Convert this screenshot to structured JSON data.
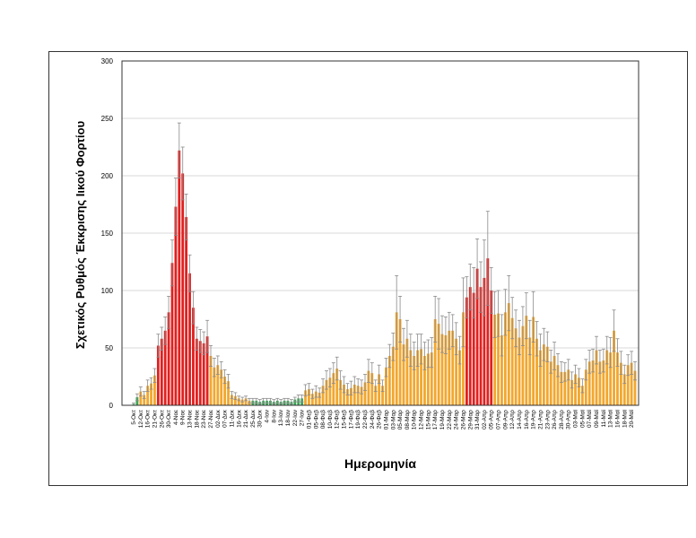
{
  "chart_data": {
    "type": "bar",
    "title": "",
    "xlabel": "Ημερομηνία",
    "ylabel": "Σχετικός Ρυθμός Έκκρισης Ιικού Φορτίου",
    "ylim": [
      0,
      300
    ],
    "yticks": [
      0,
      50,
      100,
      150,
      200,
      250,
      300
    ],
    "grid": true,
    "tick_labels": [
      "5-Οκτ",
      "12-Οκτ",
      "16-Οκτ",
      "21-Οκτ",
      "26-Οκτ",
      "30-Οκτ",
      "4-Νοε",
      "9-Νοε",
      "13-Νοε",
      "18-Νοε",
      "23-Νοε",
      "27-Νοε",
      "02-Δεκ",
      "07-Δεκ",
      "11-Δεκ",
      "16-Δεκ",
      "21-Δεκ",
      "25-Δεκ",
      "30-Δεκ",
      "4-Ιαν",
      "8-Ιαν",
      "13-Ιαν",
      "18-Ιαν",
      "22-Ιαν",
      "27-Ιαν",
      "01-Φεβ",
      "05-Φεβ",
      "08-Φεβ",
      "10-Φεβ",
      "12-Φεβ",
      "15-Φεβ",
      "17-Φεβ",
      "19-Φεβ",
      "22-Φεβ",
      "24-Φεβ",
      "26-Φεβ",
      "01-Μαρ",
      "03-Μαρ",
      "05-Μαρ",
      "08-Μαρ",
      "10-Μαρ",
      "12-Μαρ",
      "15-Μαρ",
      "17-Μαρ",
      "19-Μαρ",
      "22-Μαρ",
      "24-Μαρ",
      "26-Μαρ",
      "29-Μαρ",
      "31-Μαρ",
      "02-Απρ",
      "05-Απρ",
      "07-Απρ",
      "09-Απρ",
      "12-Απρ",
      "14-Απρ",
      "16-Απρ",
      "19-Απρ",
      "21-Απρ",
      "23-Απρ",
      "26-Απρ",
      "28-Απρ",
      "30-Απρ",
      "03-Μαϊ",
      "05-Μαϊ",
      "07-Μαϊ",
      "09-Μαϊ",
      "11-Μαϊ",
      "13-Μαϊ",
      "16-Μαϊ",
      "18-Μαϊ",
      "20-Μαϊ"
    ],
    "values": [
      1,
      7,
      12,
      9,
      17,
      19,
      26,
      52,
      58,
      65,
      81,
      124,
      173,
      222,
      202,
      164,
      115,
      85,
      58,
      56,
      54,
      60,
      43,
      33,
      35,
      31,
      25,
      21,
      9,
      8,
      6,
      5,
      6,
      4,
      4,
      4,
      3,
      4,
      4,
      4,
      3,
      4,
      3,
      4,
      4,
      3,
      5,
      6,
      6,
      13,
      14,
      10,
      12,
      11,
      17,
      22,
      24,
      28,
      32,
      22,
      18,
      14,
      15,
      18,
      17,
      16,
      20,
      30,
      28,
      17,
      27,
      17,
      33,
      43,
      51,
      81,
      75,
      53,
      58,
      48,
      43,
      48,
      49,
      43,
      45,
      46,
      75,
      71,
      62,
      61,
      65,
      65,
      58,
      48,
      81,
      94,
      103,
      98,
      119,
      103,
      111,
      128,
      100,
      79,
      80,
      61,
      81,
      89,
      76,
      67,
      59,
      69,
      78,
      59,
      77,
      58,
      48,
      53,
      51,
      38,
      43,
      35,
      29,
      29,
      31,
      22,
      27,
      24,
      17,
      31,
      38,
      39,
      48,
      38,
      39,
      48,
      46,
      65,
      46,
      37,
      27,
      35,
      37,
      30
    ],
    "errors": [
      1,
      3,
      4,
      3,
      5,
      5,
      6,
      10,
      10,
      12,
      14,
      20,
      25,
      24,
      23,
      20,
      16,
      14,
      10,
      10,
      10,
      14,
      9,
      8,
      8,
      7,
      6,
      6,
      3,
      3,
      2,
      2,
      2,
      2,
      2,
      2,
      2,
      2,
      2,
      2,
      2,
      2,
      2,
      2,
      2,
      2,
      2,
      3,
      3,
      5,
      5,
      4,
      5,
      4,
      6,
      8,
      8,
      9,
      10,
      8,
      7,
      5,
      6,
      7,
      6,
      6,
      7,
      10,
      9,
      5,
      8,
      5,
      8,
      10,
      12,
      32,
      20,
      14,
      16,
      14,
      12,
      14,
      13,
      12,
      12,
      13,
      20,
      22,
      16,
      16,
      16,
      14,
      14,
      12,
      30,
      18,
      20,
      22,
      26,
      22,
      33,
      41,
      20,
      20,
      20,
      18,
      20,
      24,
      18,
      16,
      15,
      17,
      20,
      15,
      22,
      15,
      14,
      14,
      13,
      10,
      12,
      10,
      9,
      8,
      9,
      7,
      8,
      8,
      6,
      9,
      10,
      10,
      12,
      10,
      10,
      12,
      13,
      18,
      12,
      10,
      8,
      9,
      10,
      8
    ],
    "level_segments": [
      {
        "level": "green",
        "count": 2
      },
      {
        "level": "orange",
        "count": 5
      },
      {
        "level": "red",
        "count": 15
      },
      {
        "level": "orange",
        "count": 12
      },
      {
        "level": "green",
        "count": 15
      },
      {
        "level": "orange",
        "count": 46
      },
      {
        "level": "red",
        "count": 8
      },
      {
        "level": "orange",
        "count": 41
      }
    ],
    "colors": {
      "green": "#3aa655",
      "orange": "#f2a72e",
      "red": "#e0201f",
      "error": "#8a8a8a",
      "grid": "#d9d9d9"
    }
  }
}
